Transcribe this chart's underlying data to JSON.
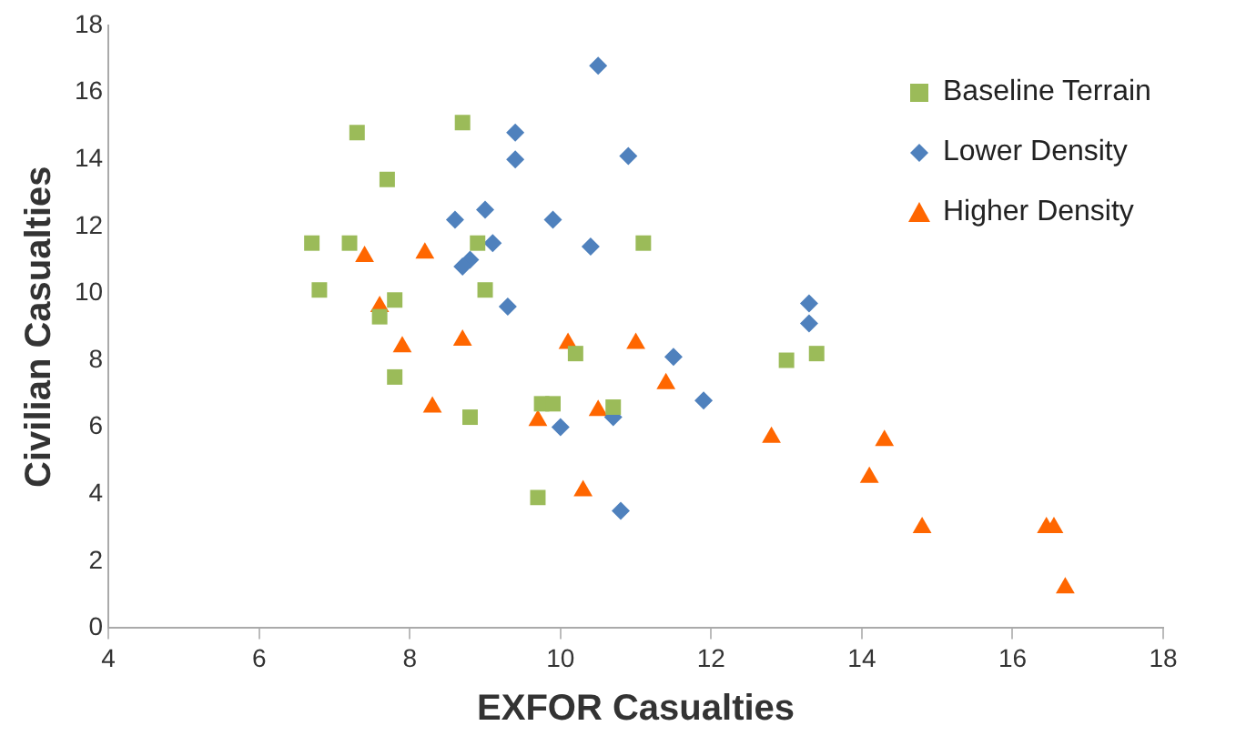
{
  "chart_data": {
    "type": "scatter",
    "xlabel": "EXFOR Casualties",
    "ylabel": "Civilian Casualties",
    "xlim": [
      4,
      18
    ],
    "xticks": [
      4,
      6,
      8,
      10,
      12,
      14,
      16,
      18
    ],
    "ylim": [
      0,
      18
    ],
    "yticks": [
      0,
      2,
      4,
      6,
      8,
      10,
      12,
      14,
      16,
      18
    ],
    "grid": false,
    "legend": "top right",
    "series": [
      {
        "name": "Baseline Terrain",
        "color": "#9bbb59",
        "marker": "square",
        "x": [
          7.3,
          8.7,
          7.7,
          6.7,
          7.2,
          8.9,
          11.1,
          6.8,
          7.8,
          7.6,
          9.0,
          10.2,
          7.8,
          8.8,
          9.75,
          9.9,
          10.7,
          9.7,
          13.0,
          13.4
        ],
        "values": [
          14.8,
          15.1,
          13.4,
          11.5,
          11.5,
          11.5,
          11.5,
          10.1,
          9.8,
          9.3,
          10.1,
          8.2,
          7.5,
          6.3,
          6.7,
          6.7,
          6.6,
          3.9,
          8.0,
          8.2
        ]
      },
      {
        "name": "Lower Density",
        "color": "#4f81bd",
        "marker": "diamond",
        "x": [
          10.5,
          9.4,
          9.4,
          10.9,
          8.6,
          9.0,
          9.9,
          9.1,
          10.4,
          8.8,
          8.7,
          9.3,
          10.0,
          10.7,
          10.8,
          13.3,
          13.3,
          11.5,
          11.9
        ],
        "values": [
          16.8,
          14.8,
          14.0,
          14.1,
          12.2,
          12.5,
          12.2,
          11.5,
          11.4,
          11.0,
          10.8,
          9.6,
          6.0,
          6.3,
          3.5,
          9.7,
          9.1,
          8.1,
          6.8
        ]
      },
      {
        "name": "Higher Density",
        "color": "#ff6600",
        "marker": "triangle",
        "x": [
          7.4,
          8.2,
          7.6,
          7.9,
          8.7,
          10.1,
          11.0,
          8.3,
          9.7,
          10.5,
          10.3,
          11.4,
          12.8,
          14.3,
          14.1,
          14.8,
          16.45,
          16.55,
          16.7
        ],
        "values": [
          11.1,
          11.2,
          9.6,
          8.4,
          8.6,
          8.5,
          8.5,
          6.6,
          6.2,
          6.5,
          4.1,
          7.3,
          5.7,
          5.6,
          4.5,
          3.0,
          3.0,
          3.0,
          1.2
        ]
      }
    ]
  }
}
